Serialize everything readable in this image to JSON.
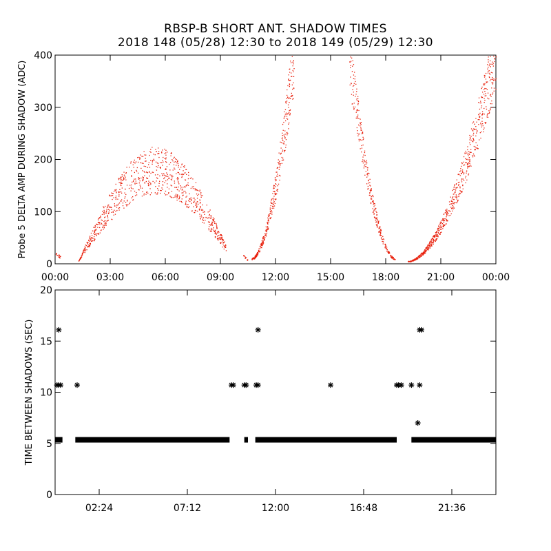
{
  "title_line1": "RBSP-B SHORT ANT. SHADOW TIMES",
  "title_line2": "2018 148 (05/28) 12:30 to 2018 149 (05/29) 12:30",
  "colors": {
    "amplitude": "#e8200c",
    "interval": "#000000",
    "axes": "#000000"
  },
  "chart_data": [
    {
      "type": "scatter",
      "ylabel": "Probe 5 DELTA AMP DURING SHADOW (ADC)",
      "xlim": [
        0,
        24
      ],
      "ylim": [
        0,
        400
      ],
      "x_ticks": [
        0,
        3,
        6,
        9,
        12,
        15,
        18,
        21,
        24
      ],
      "x_tick_labels": [
        "00:00",
        "03:00",
        "06:00",
        "09:00",
        "12:00",
        "15:00",
        "18:00",
        "21:00",
        "00:00"
      ],
      "y_ticks": [
        0,
        100,
        200,
        300,
        400
      ],
      "y_tick_labels": [
        "0",
        "100",
        "200",
        "300",
        "400"
      ],
      "segments": [
        {
          "x_start": 0.0,
          "x_end": 0.3,
          "y_start": 20,
          "y_end": 12,
          "shape": "linear",
          "count": 15
        },
        {
          "x_start": 1.25,
          "x_end": 9.3,
          "y_start": 5,
          "y_end": 30,
          "y_peak": 180,
          "x_peak": 5.5,
          "shape": "arch",
          "count": 900
        },
        {
          "x_start": 10.2,
          "x_end": 10.5,
          "y_start": 20,
          "y_end": 5,
          "shape": "linear",
          "count": 12
        },
        {
          "x_start": 10.7,
          "x_end": 13.0,
          "y_start": 10,
          "y_end": 400,
          "shape": "rising",
          "count": 380
        },
        {
          "x_start": 16.0,
          "x_end": 18.5,
          "y_start": 400,
          "y_end": 10,
          "shape": "falling",
          "count": 320
        },
        {
          "x_start": 19.2,
          "x_end": 24.0,
          "y_start": 5,
          "y_end": 400,
          "shape": "rising",
          "count": 700
        }
      ]
    },
    {
      "type": "scatter",
      "ylabel": "TIME BETWEEN SHADOWS (SEC)",
      "xlim": [
        0,
        24
      ],
      "ylim": [
        0,
        20
      ],
      "x_ticks": [
        2.4,
        7.2,
        12.0,
        16.8,
        21.6
      ],
      "x_tick_labels": [
        "02:24",
        "07:12",
        "12:00",
        "16:48",
        "21:36"
      ],
      "y_ticks": [
        0,
        5,
        10,
        15,
        20
      ],
      "y_tick_labels": [
        "0",
        "5",
        "10",
        "15",
        "20"
      ],
      "baseline": {
        "y": 5.35,
        "ranges": [
          [
            0.0,
            0.4
          ],
          [
            1.1,
            9.5
          ],
          [
            10.3,
            10.5
          ],
          [
            10.9,
            18.6
          ],
          [
            19.4,
            24.0
          ]
        ]
      },
      "points": [
        {
          "x": 0.2,
          "y": 16.1
        },
        {
          "x": 0.1,
          "y": 10.7
        },
        {
          "x": 0.2,
          "y": 10.7
        },
        {
          "x": 0.3,
          "y": 10.7
        },
        {
          "x": 1.2,
          "y": 10.7
        },
        {
          "x": 9.6,
          "y": 10.7
        },
        {
          "x": 9.7,
          "y": 10.7
        },
        {
          "x": 10.3,
          "y": 10.7
        },
        {
          "x": 10.4,
          "y": 10.7
        },
        {
          "x": 10.95,
          "y": 10.7
        },
        {
          "x": 11.05,
          "y": 10.7
        },
        {
          "x": 11.05,
          "y": 16.1
        },
        {
          "x": 15.0,
          "y": 10.7
        },
        {
          "x": 18.6,
          "y": 10.7
        },
        {
          "x": 18.7,
          "y": 10.7
        },
        {
          "x": 18.85,
          "y": 10.7
        },
        {
          "x": 19.4,
          "y": 10.7
        },
        {
          "x": 19.85,
          "y": 10.7
        },
        {
          "x": 19.85,
          "y": 16.1
        },
        {
          "x": 19.95,
          "y": 16.1
        },
        {
          "x": 19.75,
          "y": 7.0
        }
      ]
    }
  ]
}
